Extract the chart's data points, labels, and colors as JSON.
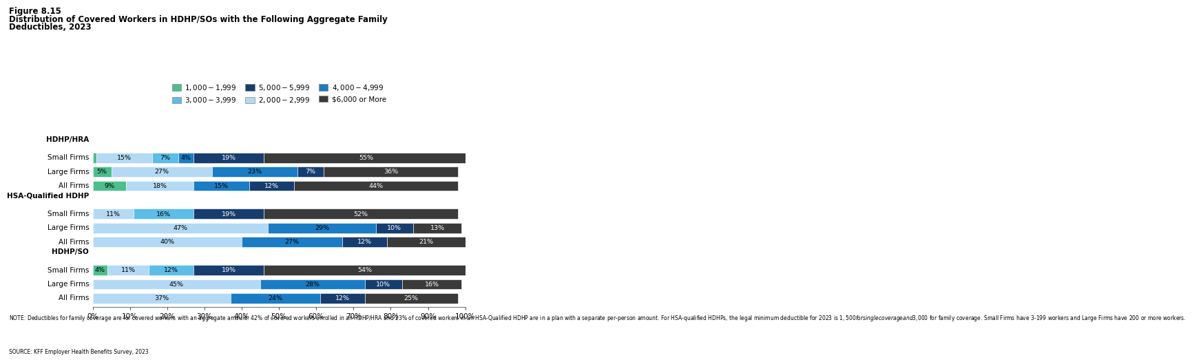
{
  "title_line1": "Figure 8.15",
  "title_line2": "Distribution of Covered Workers in HDHP/SOs with the Following Aggregate Family",
  "title_line3": "Deductibles, 2023",
  "note": "NOTE: Deductibles for family coverage are for covered workers with an aggregate amount. 42% of covered workers enrolled in an HDHP/HRA and 23% of covered workers in an HSA-Qualified HDHP are in a plan with a separate per-person amount. For HSA-qualified HDHPs, the legal minimum deductible for 2023 is $1,500 for single coverage and $3,000 for family coverage. Small Firms have 3-199 workers and Large Firms have 200 or more workers.",
  "source": "SOURCE: KFF Employer Health Benefits Survey, 2023",
  "colors": {
    "c1": "#4dbe8c",
    "c2": "#b3d9f5",
    "c3": "#5bbde8",
    "c4": "#1a7cc4",
    "c5": "#163d6e",
    "c6": "#3a3a3a"
  },
  "legend_items": [
    [
      "$1,000 - $1,999",
      "c1"
    ],
    [
      "$3,000 - $3,999",
      "c3"
    ],
    [
      "$5,000 - $5,999",
      "c5"
    ],
    [
      "$2,000 - $2,999",
      "c2"
    ],
    [
      "$4,000 - $4,999",
      "c4"
    ],
    [
      "$6,000 or More",
      "c6"
    ]
  ],
  "rows": [
    {
      "label": "HDHP/HRA",
      "header": true,
      "segs": [],
      "lbls": []
    },
    {
      "label": "Small Firms",
      "header": false,
      "segs": [
        1,
        15,
        7,
        4,
        19,
        55
      ],
      "lbls": [
        "",
        "15%",
        "7%",
        "4%",
        "19%",
        "55%"
      ],
      "clrs": [
        "c1",
        "c2",
        "c3",
        "c4",
        "c5",
        "c6"
      ]
    },
    {
      "label": "Large Firms",
      "header": false,
      "segs": [
        5,
        27,
        0,
        23,
        7,
        36
      ],
      "lbls": [
        "5%",
        "27%",
        "",
        "23%",
        "7%",
        "36%"
      ],
      "clrs": [
        "c1",
        "c2",
        "c3",
        "c4",
        "c5",
        "c6"
      ]
    },
    {
      "label": "All Firms",
      "header": false,
      "segs": [
        9,
        18,
        0,
        15,
        12,
        44
      ],
      "lbls": [
        "9%",
        "18%",
        "",
        "15%",
        "12%",
        "44%"
      ],
      "clrs": [
        "c1",
        "c2",
        "c3",
        "c4",
        "c5",
        "c6"
      ]
    },
    {
      "label": "HSA-Qualified HDHP",
      "header": true,
      "segs": [],
      "lbls": []
    },
    {
      "label": "Small Firms",
      "header": false,
      "segs": [
        0,
        11,
        16,
        0,
        19,
        52
      ],
      "lbls": [
        "",
        "11%",
        "16%",
        "",
        "19%",
        "52%"
      ],
      "clrs": [
        "c1",
        "c2",
        "c3",
        "c4",
        "c5",
        "c6"
      ]
    },
    {
      "label": "Large Firms",
      "header": false,
      "segs": [
        0,
        47,
        0,
        29,
        10,
        13
      ],
      "lbls": [
        "",
        "47%",
        "",
        "29%",
        "10%",
        "13%"
      ],
      "clrs": [
        "c1",
        "c2",
        "c3",
        "c4",
        "c5",
        "c6"
      ]
    },
    {
      "label": "All Firms",
      "header": false,
      "segs": [
        0,
        40,
        0,
        27,
        12,
        21
      ],
      "lbls": [
        "",
        "40%",
        "",
        "27%",
        "12%",
        "21%"
      ],
      "clrs": [
        "c1",
        "c2",
        "c3",
        "c4",
        "c5",
        "c6"
      ]
    },
    {
      "label": "HDHP/SO",
      "header": true,
      "segs": [],
      "lbls": []
    },
    {
      "label": "Small Firms",
      "header": false,
      "segs": [
        4,
        11,
        12,
        0,
        19,
        54
      ],
      "lbls": [
        "4%",
        "11%",
        "12%",
        "",
        "19%",
        "54%"
      ],
      "clrs": [
        "c1",
        "c2",
        "c3",
        "c4",
        "c5",
        "c6"
      ]
    },
    {
      "label": "Large Firms",
      "header": false,
      "segs": [
        0,
        45,
        0,
        28,
        10,
        16
      ],
      "lbls": [
        "",
        "45%",
        "",
        "28%",
        "10%",
        "16%"
      ],
      "clrs": [
        "c1",
        "c2",
        "c3",
        "c4",
        "c5",
        "c6"
      ]
    },
    {
      "label": "All Firms",
      "header": false,
      "segs": [
        0,
        37,
        0,
        24,
        12,
        25
      ],
      "lbls": [
        "",
        "37%",
        "",
        "24%",
        "12%",
        "25%"
      ],
      "clrs": [
        "c1",
        "c2",
        "c3",
        "c4",
        "c5",
        "c6"
      ]
    }
  ]
}
